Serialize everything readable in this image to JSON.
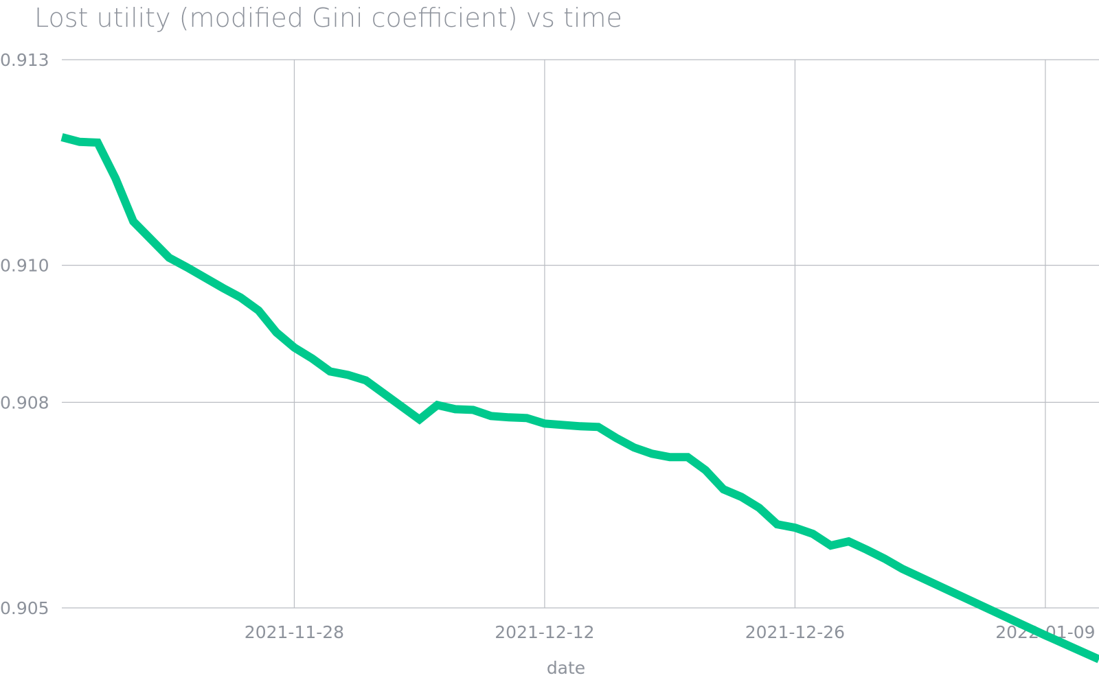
{
  "chart_data": {
    "type": "line",
    "title": "Lost utility (modified Gini coefficient) vs time",
    "xlabel": "date",
    "ylabel": "",
    "x_ticks": [
      "2021-11-28",
      "2021-12-12",
      "2021-12-26",
      "2022-01-09"
    ],
    "y_ticks": [
      "0.913",
      "0.910",
      "0.908",
      "0.905"
    ],
    "y_tick_values": [
      0.913,
      0.91,
      0.908,
      0.905
    ],
    "ylim": [
      0.905,
      0.913
    ],
    "xlim": [
      "2021-11-15",
      "2022-01-12"
    ],
    "grid": true,
    "legend": "none",
    "color": "#00c98d",
    "series": [
      {
        "name": "",
        "x": [
          "2021-11-15",
          "2021-11-16",
          "2021-11-17",
          "2021-11-18",
          "2021-11-19",
          "2021-11-21",
          "2021-11-22",
          "2021-11-24",
          "2021-11-25",
          "2021-11-26",
          "2021-11-27",
          "2021-11-28",
          "2021-11-29",
          "2021-11-30",
          "2021-12-01",
          "2021-12-02",
          "2021-12-05",
          "2021-12-06",
          "2021-12-07",
          "2021-12-08",
          "2021-12-09",
          "2021-12-10",
          "2021-12-11",
          "2021-12-12",
          "2021-12-14",
          "2021-12-15",
          "2021-12-16",
          "2021-12-17",
          "2021-12-18",
          "2021-12-19",
          "2021-12-20",
          "2021-12-21",
          "2021-12-22",
          "2021-12-23",
          "2021-12-24",
          "2021-12-25",
          "2021-12-26",
          "2021-12-27",
          "2021-12-28",
          "2021-12-29",
          "2021-12-30",
          "2021-12-31",
          "2022-01-01",
          "2022-01-09",
          "2022-01-12"
        ],
        "y": [
          0.91187,
          0.9118,
          0.91179,
          0.91127,
          0.91064,
          0.91011,
          0.90997,
          0.90967,
          0.90953,
          0.90934,
          0.90902,
          0.9088,
          0.90864,
          0.90845,
          0.9084,
          0.90832,
          0.90775,
          0.90796,
          0.9079,
          0.90789,
          0.9078,
          0.90778,
          0.90777,
          0.90769,
          0.90765,
          0.90764,
          0.90748,
          0.90734,
          0.90725,
          0.9072,
          0.9072,
          0.90701,
          0.90673,
          0.90662,
          0.90646,
          0.90622,
          0.90617,
          0.90608,
          0.90591,
          0.90597,
          0.90585,
          0.90572,
          0.90557,
          0.9046,
          0.90425
        ]
      }
    ]
  }
}
